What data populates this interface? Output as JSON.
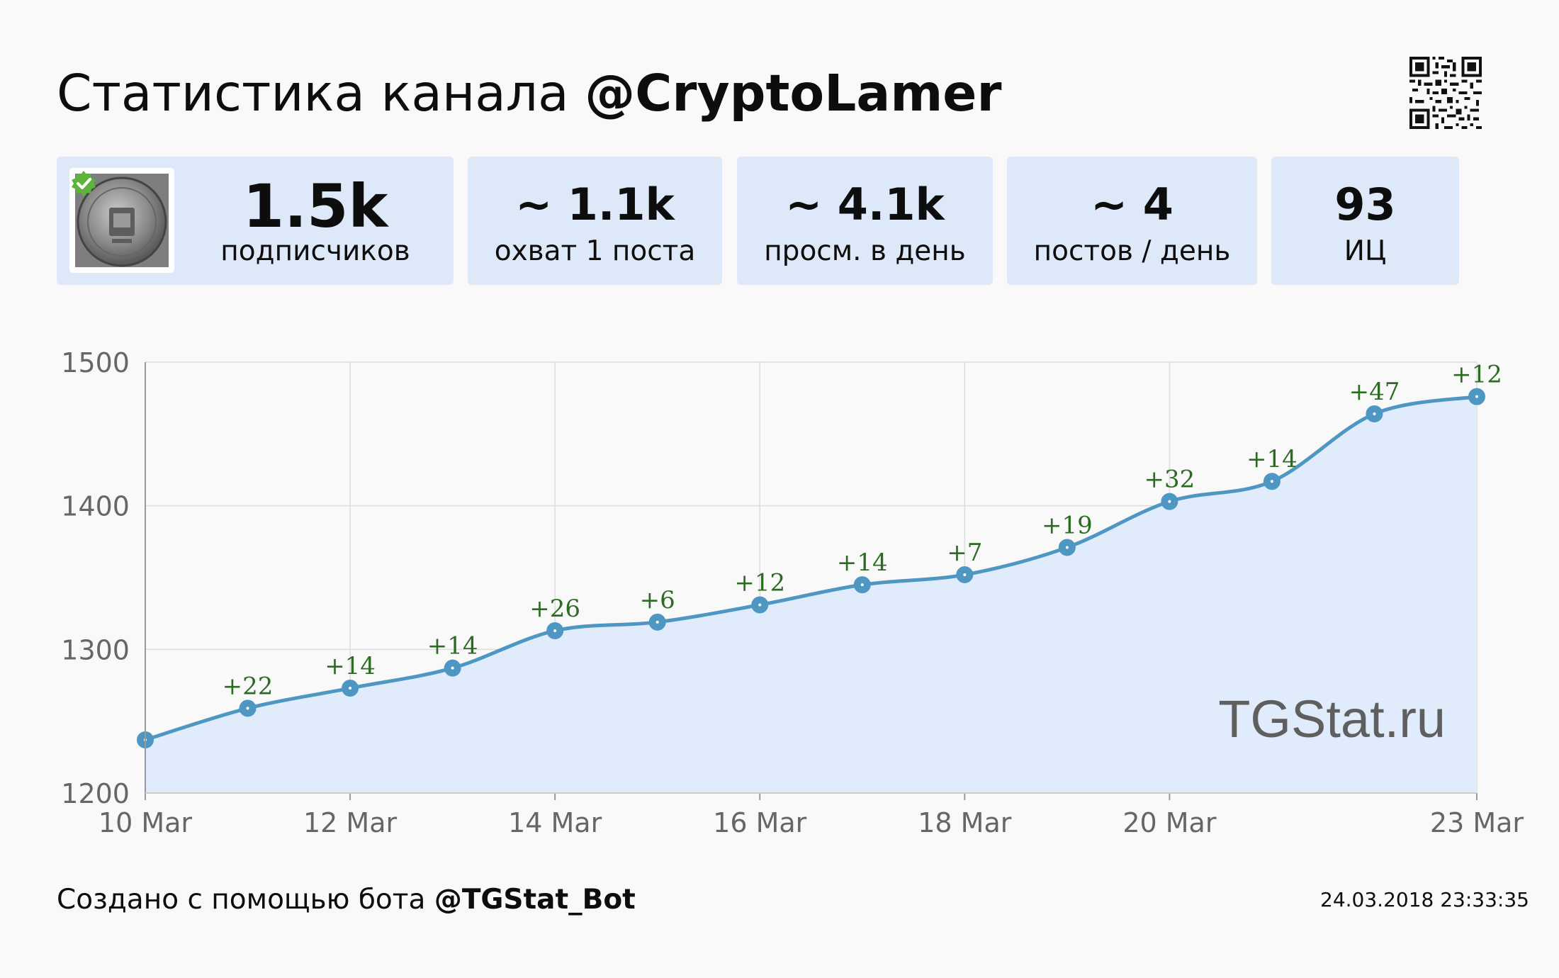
{
  "header": {
    "title_prefix": "Статистика канала",
    "channel": "@CryptoLamer"
  },
  "stats": [
    {
      "value": "1.5k",
      "label": "подписчиков"
    },
    {
      "value": "~ 1.1k",
      "label": "охват 1 поста"
    },
    {
      "value": "~ 4.1k",
      "label": "просм. в день"
    },
    {
      "value": "~ 4",
      "label": "постов / день"
    },
    {
      "value": "93",
      "label": "ИЦ"
    }
  ],
  "colors": {
    "card_bg": "#dde8f8",
    "line": "#4f97c3",
    "area": "#e0ebfb",
    "delta_text": "#2c6b22",
    "verified_badge": "#5cb53a"
  },
  "icons": {
    "qr": "qr-code-icon",
    "verified": "verified-check-icon",
    "avatar": "channel-avatar-coin"
  },
  "chart_data": {
    "type": "area",
    "title": "",
    "xlabel": "",
    "ylabel": "",
    "x": [
      "10 Mar",
      "11 Mar",
      "12 Mar",
      "13 Mar",
      "14 Mar",
      "15 Mar",
      "16 Mar",
      "17 Mar",
      "18 Mar",
      "19 Mar",
      "20 Mar",
      "21 Mar",
      "22 Mar",
      "23 Mar"
    ],
    "x_tick_labels": [
      "10 Mar",
      "12 Mar",
      "14 Mar",
      "16 Mar",
      "18 Mar",
      "20 Mar",
      "23 Mar"
    ],
    "values": [
      1237,
      1259,
      1273,
      1287,
      1313,
      1319,
      1331,
      1345,
      1352,
      1371,
      1403,
      1417,
      1464,
      1476
    ],
    "data_labels": [
      "",
      "+22",
      "+14",
      "+14",
      "+26",
      "+6",
      "+12",
      "+14",
      "+7",
      "+19",
      "+32",
      "+14",
      "+47",
      "+12"
    ],
    "ylim": [
      1200,
      1500
    ],
    "y_ticks": [
      1200,
      1300,
      1400,
      1500
    ],
    "grid": true,
    "watermark": "TGStat.ru"
  },
  "footer": {
    "prefix": "Создано с помощью бота",
    "bot": "@TGStat_Bot",
    "timestamp": "24.03.2018 23:33:35"
  }
}
